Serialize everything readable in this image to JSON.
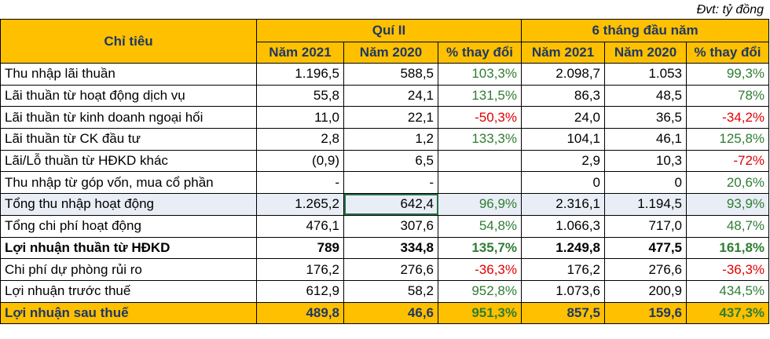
{
  "unit_note": "Đvt: tỷ đồng",
  "header": {
    "metric": "Chỉ tiêu",
    "group_q2": "Quí II",
    "group_6m": "6 tháng đầu năm",
    "cols": [
      "Năm 2021",
      "Năm 2020",
      "% thay đổi",
      "Năm 2021",
      "Năm 2020",
      "% thay đổi"
    ]
  },
  "rows": [
    {
      "name": "Thu nhập lãi thuần",
      "q2_2021": "1.196,5",
      "q2_2020": "588,5",
      "q2_chg": "103,3%",
      "h1_2021": "2.098,7",
      "h1_2020": "1.053",
      "h1_chg": "99,3%"
    },
    {
      "name": "Lãi thuần từ hoạt động dịch vụ",
      "q2_2021": "55,8",
      "q2_2020": "24,1",
      "q2_chg": "131,5%",
      "h1_2021": "86,3",
      "h1_2020": "48,5",
      "h1_chg": "78%"
    },
    {
      "name": "Lãi thuần từ kinh doanh ngoại hối",
      "q2_2021": "11,0",
      "q2_2020": "22,1",
      "q2_chg": "-50,3%",
      "h1_2021": "24,0",
      "h1_2020": "36,5",
      "h1_chg": "-34,2%"
    },
    {
      "name": "Lãi thuần từ CK đầu tư",
      "q2_2021": "2,8",
      "q2_2020": "1,2",
      "q2_chg": "133,3%",
      "h1_2021": "104,1",
      "h1_2020": "46,1",
      "h1_chg": "125,8%"
    },
    {
      "name": "Lãi/Lỗ thuần từ HĐKD khác",
      "q2_2021": "(0,9)",
      "q2_2020": "6,5",
      "q2_chg": "",
      "h1_2021": "2,9",
      "h1_2020": "10,3",
      "h1_chg": "-72%"
    },
    {
      "name": "Thu nhập từ góp vốn, mua cổ phần",
      "q2_2021": "-",
      "q2_2020": "-",
      "q2_chg": "",
      "h1_2021": "0",
      "h1_2020": "0",
      "h1_chg": "20,6%"
    },
    {
      "name": "Tổng thu nhập hoạt động",
      "q2_2021": "1.265,2",
      "q2_2020": "642,4",
      "q2_chg": "96,9%",
      "h1_2021": "2.316,1",
      "h1_2020": "1.194,5",
      "h1_chg": "93,9%"
    },
    {
      "name": "Tổng chi phí hoạt động",
      "q2_2021": "476,1",
      "q2_2020": "307,6",
      "q2_chg": "54,8%",
      "h1_2021": "1.066,3",
      "h1_2020": "717,0",
      "h1_chg": "48,7%"
    },
    {
      "name": "Lợi nhuận thuần từ HĐKD",
      "q2_2021": "789",
      "q2_2020": "334,8",
      "q2_chg": "135,7%",
      "h1_2021": "1.249,8",
      "h1_2020": "477,5",
      "h1_chg": "161,8%"
    },
    {
      "name": "Chi phí dự phòng rủi ro",
      "q2_2021": "176,2",
      "q2_2020": "276,6",
      "q2_chg": "-36,3%",
      "h1_2021": "176,2",
      "h1_2020": "276,6",
      "h1_chg": "-36,3%"
    },
    {
      "name": "Lợi nhuận trước thuế",
      "q2_2021": "612,9",
      "q2_2020": "58,2",
      "q2_chg": "952,8%",
      "h1_2021": "1.073,6",
      "h1_2020": "200,9",
      "h1_chg": "434,5%"
    },
    {
      "name": "Lợi nhuận sau thuế",
      "q2_2021": "489,8",
      "q2_2020": "46,6",
      "q2_chg": "951,3%",
      "h1_2021": "857,5",
      "h1_2020": "159,6",
      "h1_chg": "437,3%"
    }
  ],
  "colors": {
    "header_bg": "#ffc000",
    "header_text": "#1f3864",
    "positive": "#2e7d32",
    "negative": "#e00000"
  }
}
